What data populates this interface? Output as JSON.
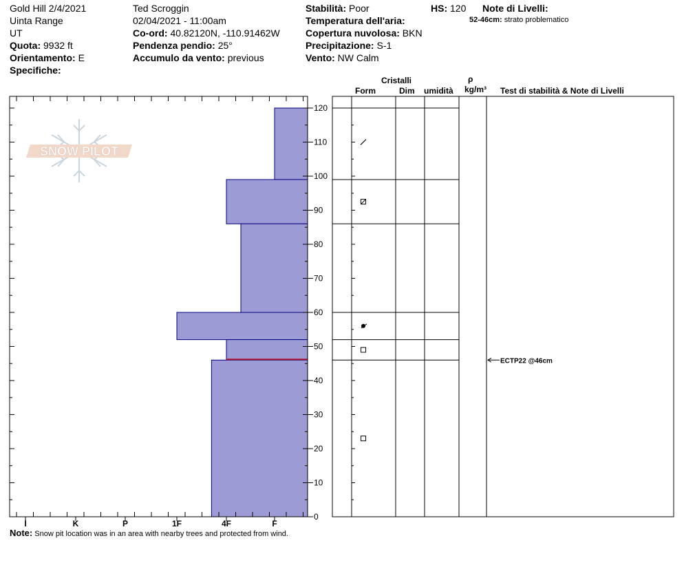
{
  "header": {
    "location": "Gold Hill 2/4/2021",
    "range": "Uinta Range",
    "state": "UT",
    "elevation_label": "Quota:",
    "elevation_value": "9932 ft",
    "aspect_label": "Orientamento:",
    "aspect_value": "E",
    "specifics_label": "Specifiche:",
    "observer": "Ted Scroggin",
    "datetime": "02/04/2021 - 11:00am",
    "coord_label": "Co-ord:",
    "coord_value": "40.82120N, -110.91462W",
    "slope_label": "Pendenza pendio:",
    "slope_value": "25°",
    "wind_loading_label": "Accumulo da vento:",
    "wind_loading_value": "previous",
    "stability_label": "Stabilità:",
    "stability_value": "Poor",
    "air_temp_label": "Temperatura dell'aria:",
    "cloud_label": "Copertura nuvolosa:",
    "cloud_value": "BKN",
    "precip_label": "Precipitazione:",
    "precip_value": "S-1",
    "wind_label": "Vento:",
    "wind_value": "NW Calm",
    "hs_label": "HS:",
    "hs_value": "120",
    "layer_notes_label": "Note di Livelli:",
    "layer_note_range": "52-46cm:",
    "layer_note_text": "strato problematico"
  },
  "logo": {
    "text": "SNOW PILOT"
  },
  "columns": {
    "crystals": "Cristalli",
    "form": "Form",
    "size": "Dim",
    "moisture": "umidità",
    "rho": "ρ",
    "density": "kg/m³",
    "stability_notes": "Test di stabilità & Note di Livelli"
  },
  "note": {
    "label": "Note:",
    "text": "Snow pit location was in an area with nearby trees and protected from wind."
  },
  "test_result": "ECTP22 @46cm",
  "colors": {
    "bar_fill": "#9d9bd6",
    "bar_stroke": "#00007a",
    "problem_layer": "#b0172f"
  },
  "chart_data": {
    "type": "bar",
    "title": "",
    "xlabel": "",
    "ylabel": "",
    "hardness_ticks": [
      "I",
      "K",
      "P",
      "1F",
      "4F",
      "F"
    ],
    "ylim": [
      0,
      120
    ],
    "y_ticks": [
      0,
      10,
      20,
      30,
      40,
      50,
      60,
      70,
      80,
      90,
      100,
      110,
      120
    ],
    "layers": [
      {
        "top": 120,
        "bottom": 99,
        "hardness": "F"
      },
      {
        "top": 99,
        "bottom": 86,
        "hardness": "4F"
      },
      {
        "top": 86,
        "bottom": 60,
        "hardness": "4F+"
      },
      {
        "top": 60,
        "bottom": 52,
        "hardness": "1F"
      },
      {
        "top": 52,
        "bottom": 46,
        "hardness": "4F"
      },
      {
        "top": 46,
        "bottom": 0,
        "hardness": "4F-"
      }
    ],
    "hardness_position": {
      "F": 5,
      "4F+": 4.3,
      "4F": 4,
      "4F-": 3.7,
      "1F": 3
    },
    "layer_boundaries": [
      120,
      99,
      86,
      60,
      52,
      46
    ],
    "problem_layer_depth": 46,
    "grain_symbols": [
      {
        "depth": 110,
        "symbol": "slash"
      },
      {
        "depth": 92.5,
        "symbol": "box-cross"
      },
      {
        "depth": 56,
        "symbol": "dot-arrow"
      },
      {
        "depth": 49,
        "symbol": "square"
      },
      {
        "depth": 23,
        "symbol": "square"
      }
    ],
    "test_depth": 46
  }
}
